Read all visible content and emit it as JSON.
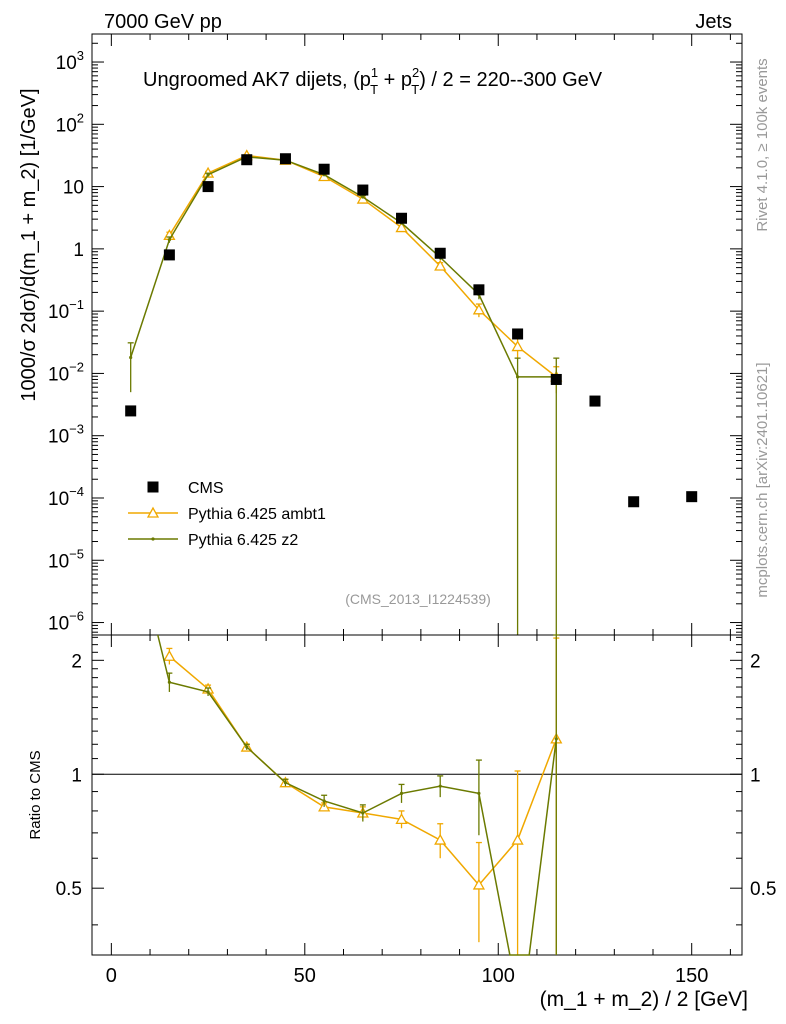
{
  "header": {
    "left": "7000 GeV pp",
    "right": "Jets",
    "side_top": "Rivet 4.1.0, ≥ 100k events",
    "side_bottom": "mcplots.cern.ch [arXiv:2401.10621]"
  },
  "colors": {
    "cms": "#000000",
    "ambt1": "#f0a800",
    "z2": "#6b7a00",
    "analysis_label": "#999999"
  },
  "chart_data": {
    "type": "scatter",
    "title_main": "Ungroomed AK7 dijets, (p",
    "title_sup1": "1",
    "title_sub1": "T",
    "title_plus": " + p",
    "title_sup2": "2",
    "title_sub2": "T",
    "title_tail": ") / 2 = 220--300 GeV",
    "analysis_id": "(CMS_2013_I1224539)",
    "xlabel": "(m_1 + m_2) / 2 [GeV]",
    "ylabel": "1000/σ   2dσ)/d(m_1 + m_2) [1/GeV]",
    "ratio_ylabel": "Ratio to CMS",
    "xlim": [
      -5,
      163
    ],
    "ylim_log": [
      -6.2,
      3.45
    ],
    "ratio_ylim": [
      0.333,
      2.333
    ],
    "x_ticks": [
      0,
      50,
      100,
      150
    ],
    "x_tick_labels": [
      "0",
      "50",
      "100",
      "150"
    ],
    "y_decades": [
      {
        "exp": 3,
        "label": "10",
        "sup": "3"
      },
      {
        "exp": 2,
        "label": "10",
        "sup": "2"
      },
      {
        "exp": 1,
        "label": "10",
        "sup": ""
      },
      {
        "exp": 0,
        "label": "1",
        "sup": ""
      },
      {
        "exp": -1,
        "label": "10",
        "sup": "−1"
      },
      {
        "exp": -2,
        "label": "10",
        "sup": "−2"
      },
      {
        "exp": -3,
        "label": "10",
        "sup": "−3"
      },
      {
        "exp": -4,
        "label": "10",
        "sup": "−4"
      },
      {
        "exp": -5,
        "label": "10",
        "sup": "−5"
      },
      {
        "exp": -6,
        "label": "10",
        "sup": "−6"
      }
    ],
    "ratio_ticks": [
      {
        "value": 2,
        "label": "2"
      },
      {
        "value": 1,
        "label": "1"
      },
      {
        "value": 0.5,
        "label": "0.5"
      }
    ],
    "legend": [
      {
        "key": "cms",
        "label": "CMS"
      },
      {
        "key": "ambt1",
        "label": "Pythia 6.425 ambt1"
      },
      {
        "key": "z2",
        "label": "Pythia 6.425 z2"
      }
    ],
    "series": [
      {
        "name": "CMS",
        "x": [
          5,
          15,
          25,
          35,
          45,
          55,
          65,
          75,
          85,
          95,
          105,
          115,
          125,
          135,
          150
        ],
        "y": [
          0.0025,
          0.8,
          10,
          27,
          28,
          19,
          8.8,
          3.1,
          0.85,
          0.22,
          0.043,
          0.008,
          0.0036,
          8.7e-05,
          0.000105
        ]
      },
      {
        "name": "Pythia 6.425 ambt1",
        "x": [
          15,
          25,
          35,
          45,
          55,
          65,
          75,
          85,
          95,
          105,
          115
        ],
        "y": [
          1.65,
          16.5,
          31.5,
          26.5,
          14.5,
          6.3,
          2.2,
          0.53,
          0.105,
          0.027,
          0.0088
        ],
        "y_err": [
          0.2,
          1.0,
          1.2,
          1.0,
          0.7,
          0.35,
          0.15,
          0.07,
          0.025,
          0.01,
          0.004
        ]
      },
      {
        "name": "Pythia 6.425 z2",
        "x": [
          5,
          15,
          25,
          35,
          45,
          55,
          65,
          75,
          85,
          95,
          105,
          115
        ],
        "y": [
          0.018,
          1.4,
          15.5,
          30,
          26.5,
          15.5,
          6.8,
          2.6,
          0.73,
          0.185,
          0.0088,
          0.0088
        ],
        "y_err": [
          0.013,
          0.15,
          0.9,
          1.2,
          1.0,
          0.7,
          0.35,
          0.15,
          0.07,
          0.03,
          0.0088,
          0.0088
        ]
      }
    ],
    "ratio_series": [
      {
        "name": "Pythia 6.425 ambt1",
        "x": [
          15,
          25,
          35,
          45,
          55,
          65,
          75,
          85,
          95,
          105,
          115
        ],
        "y": [
          2.05,
          1.68,
          1.18,
          0.95,
          0.82,
          0.79,
          0.76,
          0.67,
          0.51,
          0.67,
          1.24
        ],
        "y_err": [
          0.1,
          0.04,
          0.02,
          0.02,
          0.02,
          0.03,
          0.04,
          0.07,
          0.15,
          0.35,
          1.05
        ]
      },
      {
        "name": "Pythia 6.425 z2",
        "x": [
          12,
          15,
          25,
          35,
          45,
          55,
          65,
          75,
          85,
          95,
          103,
          108,
          115
        ],
        "y": [
          2.35,
          1.75,
          1.65,
          1.18,
          0.95,
          0.85,
          0.79,
          0.89,
          0.93,
          0.89,
          0.33,
          0.33,
          1.24
        ],
        "y_err": [
          0,
          0.1,
          0.04,
          0.02,
          0.02,
          0.03,
          0.04,
          0.05,
          0.06,
          0.2,
          0,
          0,
          1.1
        ]
      }
    ]
  }
}
